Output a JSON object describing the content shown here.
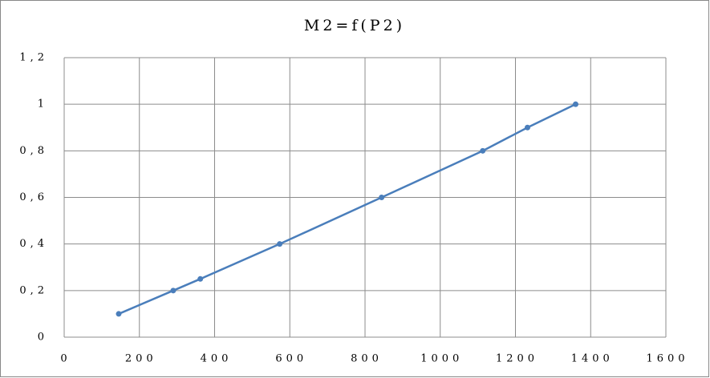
{
  "chart_data": {
    "type": "line",
    "title": "M2=f(P2)",
    "x": [
      145,
      290,
      362,
      573,
      844,
      1113,
      1232,
      1360
    ],
    "series": [
      {
        "color": "#4a7ebb",
        "values": [
          0.1,
          0.2,
          0.25,
          0.4,
          0.6,
          0.8,
          0.9,
          1.0
        ]
      }
    ],
    "xlim": [
      0,
      1600
    ],
    "xticks": [
      0,
      200,
      400,
      600,
      800,
      1000,
      1200,
      1400,
      1600
    ],
    "ylim": [
      0,
      1.2
    ],
    "yticks": [
      0,
      {
        "value": 0.2,
        "label": "0,2"
      },
      {
        "value": 0.4,
        "label": "0,4"
      },
      {
        "value": 0.6,
        "label": "0,6"
      },
      {
        "value": 0.8,
        "label": "0,8"
      },
      1,
      {
        "value": 1.2,
        "label": "1,2"
      }
    ],
    "grid": true
  }
}
